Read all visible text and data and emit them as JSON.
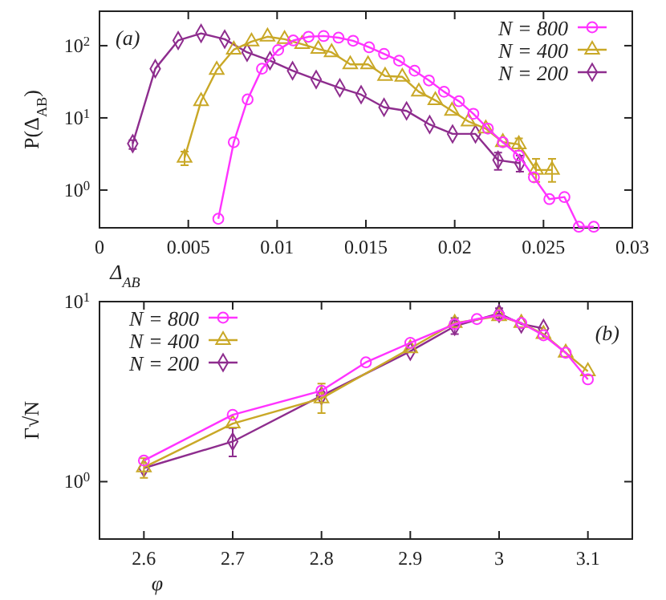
{
  "chart_data": [
    {
      "type": "line",
      "xlabel": "Δ$_{AB}$",
      "ylabel": "P(Δ$_{AB}$)",
      "log": "y",
      "legend": "top right",
      "annotations": [
        "(a)"
      ],
      "xlim": [
        0,
        0.03
      ],
      "xticks": [
        0,
        0.005,
        0.01,
        0.015,
        0.02,
        0.025,
        0.03
      ],
      "ylim": [
        0.3,
        300
      ],
      "yticks": [
        {
          "value": 1,
          "label": "10$^{0}$"
        },
        {
          "value": 10,
          "label": "10$^{1}$"
        },
        {
          "value": 100,
          "label": "10$^{2}$"
        }
      ],
      "series": [
        {
          "name": "N = 800",
          "color": "#ff33ff",
          "marker": "circle",
          "x": [
            0.00669,
            0.00756,
            0.00834,
            0.00915,
            0.01006,
            0.01091,
            0.01177,
            0.01262,
            0.01346,
            0.01428,
            0.01518,
            0.01602,
            0.01687,
            0.01774,
            0.01855,
            0.0194,
            0.02024,
            0.02105,
            0.02187,
            0.02271,
            0.02361,
            0.02446,
            0.02533,
            0.02618,
            0.02699,
            0.02783
          ],
          "values": [
            0.4,
            4.6,
            18,
            48,
            87,
            118,
            133,
            136,
            129,
            117,
            95,
            77,
            62,
            45,
            33,
            23,
            17,
            11.4,
            7.1,
            4.6,
            3.0,
            1.5,
            0.75,
            0.8,
            0.31,
            0.31
          ]
        },
        {
          "name": "N = 400",
          "color": "#c9a827",
          "marker": "triangle",
          "x": [
            0.00479,
            0.00572,
            0.0066,
            0.00756,
            0.00856,
            0.00946,
            0.01042,
            0.01141,
            0.01232,
            0.01307,
            0.01412,
            0.01512,
            0.01608,
            0.01705,
            0.01798,
            0.01891,
            0.01985,
            0.02078,
            0.02175,
            0.02271,
            0.02361,
            0.02458,
            0.02548
          ],
          "values": [
            2.8,
            17,
            46,
            88,
            114,
            133,
            123,
            105,
            90,
            81,
            55,
            55,
            38,
            37,
            23,
            17.5,
            12.5,
            8.9,
            7.1,
            4.6,
            4.3,
            1.9,
            1.9
          ],
          "errors": [
            [
              2.2,
              3.4
            ],
            null,
            null,
            null,
            null,
            null,
            null,
            null,
            null,
            null,
            null,
            null,
            null,
            null,
            null,
            null,
            null,
            null,
            null,
            null,
            [
              3.5,
              5.2
            ],
            [
              1.3,
              2.7
            ],
            [
              1.3,
              2.7
            ]
          ]
        },
        {
          "name": "N = 200",
          "color": "#8e2d8e",
          "marker": "diamond",
          "x": [
            0.00187,
            0.00314,
            0.00443,
            0.00572,
            0.00705,
            0.00831,
            0.0096,
            0.01087,
            0.0122,
            0.01353,
            0.01473,
            0.01602,
            0.01729,
            0.01859,
            0.01988,
            0.02117,
            0.02244,
            0.02367
          ],
          "values": [
            4.4,
            48,
            118,
            148,
            123,
            81,
            62,
            45,
            34,
            26,
            21,
            14,
            12.5,
            8.1,
            6.0,
            6.0,
            2.6,
            2.35
          ],
          "errors": [
            [
              3.7,
              4.9
            ],
            null,
            null,
            null,
            null,
            null,
            null,
            null,
            null,
            null,
            null,
            null,
            null,
            null,
            null,
            null,
            [
              1.9,
              3.3
            ],
            [
              1.8,
              3.0
            ]
          ]
        }
      ]
    },
    {
      "type": "line",
      "xlabel": "φ",
      "ylabel": "Γ√N",
      "log": "y",
      "legend": "top left",
      "annotations": [
        "(b)"
      ],
      "xlim": [
        2.55,
        3.15
      ],
      "xticks": [
        2.6,
        2.7,
        2.8,
        2.9,
        3,
        3.1
      ],
      "ylim": [
        0.48,
        10
      ],
      "yticks": [
        {
          "value": 1,
          "label": "10$^{0}$"
        },
        {
          "value": 10,
          "label": "10$^{1}$"
        }
      ],
      "series": [
        {
          "name": "N = 800",
          "color": "#ff33ff",
          "marker": "circle",
          "x": [
            2.6,
            2.7,
            2.8,
            2.85,
            2.9,
            2.95,
            2.975,
            3.0,
            3.025,
            3.05,
            3.075,
            3.1
          ],
          "values": [
            1.31,
            2.35,
            3.2,
            4.6,
            5.9,
            7.5,
            8.0,
            8.4,
            7.6,
            6.5,
            5.2,
            3.7
          ]
        },
        {
          "name": "N = 400",
          "color": "#c9a827",
          "marker": "triangle",
          "x": [
            2.6,
            2.7,
            2.8,
            2.9,
            2.95,
            3.0,
            3.025,
            3.05,
            3.075,
            3.1
          ],
          "values": [
            1.2,
            2.1,
            2.9,
            5.5,
            7.6,
            8.3,
            7.6,
            6.6,
            5.2,
            4.1
          ],
          "errors": [
            [
              1.05,
              1.35
            ],
            null,
            [
              2.4,
              3.5
            ],
            null,
            null,
            null,
            null,
            null,
            null,
            null
          ]
        },
        {
          "name": "N = 200",
          "color": "#8e2d8e",
          "marker": "diamond",
          "x": [
            2.6,
            2.7,
            2.8,
            2.9,
            2.95,
            3.0,
            3.025,
            3.05
          ],
          "values": [
            1.19,
            1.67,
            3.0,
            5.3,
            7.3,
            8.6,
            7.5,
            7.1
          ],
          "errors": [
            null,
            [
              1.38,
              1.98
            ],
            null,
            null,
            [
              6.6,
              8.1
            ],
            [
              8.0,
              9.2
            ],
            null,
            null
          ]
        }
      ]
    }
  ]
}
